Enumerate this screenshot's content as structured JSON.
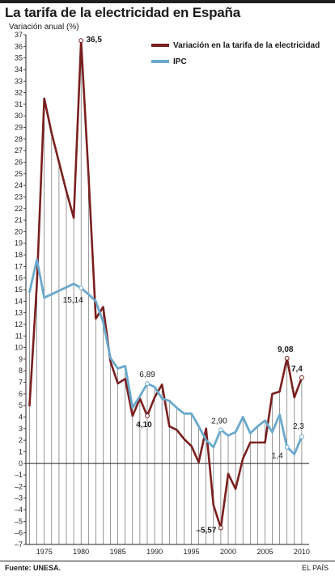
{
  "header": {
    "title": "La tarifa de la electricidad en España",
    "subtitle": "Variación anual (%)"
  },
  "footer": {
    "source": "Fuente: UNESA.",
    "credit": "EL PAÍS"
  },
  "colors": {
    "electricity": "#7a1f1f",
    "ipc": "#69a9cc",
    "axis": "#231f20",
    "dropline": "#555555"
  },
  "chart_data": {
    "type": "line",
    "title": "La tarifa de la electricidad en España",
    "ylabel": "Variación anual (%)",
    "xlim": [
      1972.5,
      2011
    ],
    "ylim": [
      -7,
      37
    ],
    "yticks": [
      -7,
      -6,
      -5,
      -4,
      -3,
      -2,
      -1,
      0,
      1,
      2,
      3,
      4,
      5,
      6,
      7,
      8,
      9,
      10,
      11,
      12,
      13,
      14,
      15,
      16,
      17,
      18,
      19,
      20,
      21,
      22,
      23,
      24,
      25,
      26,
      27,
      28,
      29,
      30,
      31,
      32,
      33,
      34,
      35,
      36,
      37
    ],
    "xticks": [
      1975,
      1980,
      1985,
      1990,
      1995,
      2000,
      2005,
      2010
    ],
    "grid": false,
    "legend_position": "top-right",
    "series": [
      {
        "name": "Variación en la tarifa de la electricidad",
        "color": "#7a1f1f",
        "x": [
          1973,
          1974,
          1975,
          1976,
          1977,
          1978,
          1979,
          1980,
          1981,
          1982,
          1983,
          1984,
          1985,
          1986,
          1987,
          1988,
          1989,
          1990,
          1991,
          1992,
          1993,
          1994,
          1995,
          1996,
          1997,
          1998,
          1999,
          2000,
          2001,
          2002,
          2003,
          2004,
          2005,
          2006,
          2007,
          2008,
          2009,
          2010
        ],
        "y": [
          5,
          15.5,
          31.5,
          28.5,
          26,
          23.5,
          21.2,
          36.5,
          25,
          12.5,
          13.5,
          8.8,
          6.9,
          7.3,
          4.1,
          5.6,
          4.1,
          5.7,
          6.8,
          3.2,
          2.9,
          2.1,
          1.5,
          0.1,
          3.0,
          -3.6,
          -5.57,
          -0.9,
          -2.2,
          0.4,
          1.8,
          1.8,
          1.8,
          6.0,
          6.2,
          9.08,
          5.7,
          7.4
        ]
      },
      {
        "name": "IPC",
        "color": "#69a9cc",
        "x": [
          1973,
          1974,
          1975,
          1976,
          1977,
          1978,
          1979,
          1980,
          1981,
          1982,
          1983,
          1984,
          1985,
          1986,
          1987,
          1988,
          1989,
          1990,
          1991,
          1992,
          1993,
          1994,
          1995,
          1996,
          1997,
          1998,
          1999,
          2000,
          2001,
          2002,
          2003,
          2004,
          2005,
          2006,
          2007,
          2008,
          2009,
          2010
        ],
        "y": [
          14.8,
          17.6,
          14.3,
          14.6,
          14.9,
          15.2,
          15.5,
          15.14,
          14.6,
          14.0,
          12.2,
          9.1,
          8.2,
          8.4,
          4.8,
          5.8,
          6.89,
          6.6,
          5.6,
          5.4,
          4.8,
          4.3,
          4.3,
          3.2,
          2.0,
          1.4,
          2.9,
          2.4,
          2.7,
          4.0,
          2.6,
          3.2,
          3.7,
          2.7,
          4.2,
          1.4,
          0.8,
          2.3
        ]
      }
    ],
    "annotations": [
      {
        "series": 0,
        "x": 1980,
        "y": 36.5,
        "label": "36,5"
      },
      {
        "series": 1,
        "x": 1980,
        "y": 15.14,
        "label": "15,14"
      },
      {
        "series": 1,
        "x": 1989,
        "y": 6.89,
        "label": "6,89"
      },
      {
        "series": 0,
        "x": 1989,
        "y": 4.1,
        "label": "4,10"
      },
      {
        "series": 1,
        "x": 1999,
        "y": 2.9,
        "label": "2,90"
      },
      {
        "series": 0,
        "x": 1999,
        "y": -5.57,
        "label": "–5,57"
      },
      {
        "series": 0,
        "x": 2008,
        "y": 9.08,
        "label": "9,08"
      },
      {
        "series": 0,
        "x": 2010,
        "y": 7.4,
        "label": "7,4"
      },
      {
        "series": 1,
        "x": 2008,
        "y": 1.4,
        "label": "1,4"
      },
      {
        "series": 1,
        "x": 2010,
        "y": 2.3,
        "label": "2,3"
      }
    ]
  }
}
